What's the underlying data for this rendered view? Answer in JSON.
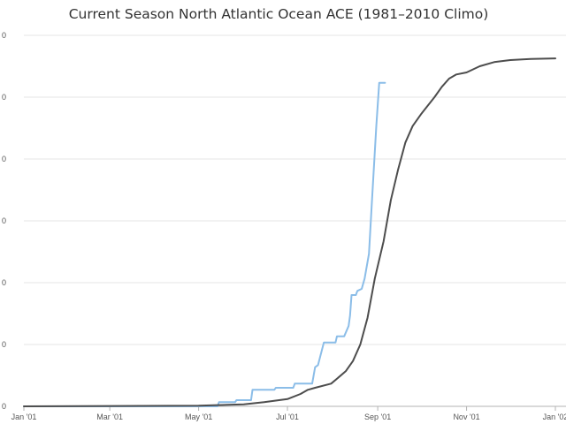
{
  "chart_data": {
    "type": "line",
    "title": "Current Season North Atlantic Ocean ACE (1981–2010 Climo)",
    "xlabel": "",
    "ylabel": "",
    "x_ticks": [
      "Jan '01",
      "Mar '01",
      "May '01",
      "Jul '01",
      "Sep '01",
      "Nov '01",
      "Jan '02"
    ],
    "y_ticks": [
      "0",
      "0",
      "0",
      "0",
      "0",
      "0",
      "0"
    ],
    "ylim": [
      0,
      180
    ],
    "grid": true,
    "legend": "none",
    "series": [
      {
        "color": "#8bbde8",
        "points": [
          [
            "2001-01-01",
            0
          ],
          [
            "2001-05-14",
            0
          ],
          [
            "2001-05-15",
            2
          ],
          [
            "2001-05-26",
            2
          ],
          [
            "2001-05-27",
            3
          ],
          [
            "2001-06-06",
            3
          ],
          [
            "2001-06-07",
            8
          ],
          [
            "2001-06-22",
            8
          ],
          [
            "2001-06-23",
            9
          ],
          [
            "2001-07-05",
            9
          ],
          [
            "2001-07-06",
            11
          ],
          [
            "2001-07-18",
            11
          ],
          [
            "2001-07-20",
            19
          ],
          [
            "2001-07-22",
            20
          ],
          [
            "2001-07-26",
            31
          ],
          [
            "2001-08-03",
            31
          ],
          [
            "2001-08-04",
            34
          ],
          [
            "2001-08-09",
            34
          ],
          [
            "2001-08-12",
            39
          ],
          [
            "2001-08-13",
            44
          ],
          [
            "2001-08-14",
            54
          ],
          [
            "2001-08-17",
            54
          ],
          [
            "2001-08-18",
            56
          ],
          [
            "2001-08-21",
            57
          ],
          [
            "2001-08-23",
            62
          ],
          [
            "2001-08-26",
            74
          ],
          [
            "2001-08-28",
            99
          ],
          [
            "2001-08-31",
            136
          ],
          [
            "2001-09-02",
            157
          ],
          [
            "2001-09-06",
            157
          ]
        ]
      },
      {
        "color": "#4d4d4d",
        "points": [
          [
            "2001-01-01",
            0
          ],
          [
            "2001-05-01",
            0.3
          ],
          [
            "2001-06-01",
            1
          ],
          [
            "2001-06-15",
            2
          ],
          [
            "2001-07-01",
            3.5
          ],
          [
            "2001-07-10",
            6
          ],
          [
            "2001-07-15",
            8
          ],
          [
            "2001-07-20",
            9
          ],
          [
            "2001-07-31",
            11
          ],
          [
            "2001-08-05",
            14
          ],
          [
            "2001-08-10",
            17
          ],
          [
            "2001-08-15",
            22
          ],
          [
            "2001-08-20",
            30
          ],
          [
            "2001-08-25",
            43
          ],
          [
            "2001-08-30",
            62
          ],
          [
            "2001-09-05",
            80
          ],
          [
            "2001-09-10",
            100
          ],
          [
            "2001-09-15",
            115
          ],
          [
            "2001-09-20",
            128
          ],
          [
            "2001-09-25",
            136
          ],
          [
            "2001-10-01",
            142
          ],
          [
            "2001-10-10",
            150
          ],
          [
            "2001-10-15",
            155
          ],
          [
            "2001-10-20",
            159
          ],
          [
            "2001-10-25",
            161
          ],
          [
            "2001-11-01",
            162
          ],
          [
            "2001-11-10",
            165
          ],
          [
            "2001-11-20",
            167
          ],
          [
            "2001-12-01",
            168
          ],
          [
            "2001-12-15",
            168.5
          ],
          [
            "2002-01-01",
            168.8
          ]
        ]
      }
    ]
  }
}
